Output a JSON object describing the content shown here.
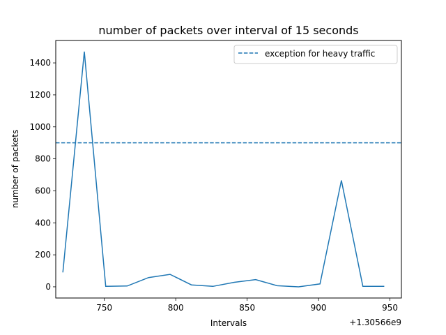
{
  "chart_data": {
    "type": "line",
    "title": "number of packets over interval of 15 seconds",
    "xlabel": "Intervals",
    "ylabel": "number of packets",
    "x_offset_label": "+1.30566e9",
    "xlim": [
      716,
      958
    ],
    "ylim": [
      -70,
      1540
    ],
    "xticks": [
      750,
      800,
      850,
      900,
      950
    ],
    "yticks": [
      0,
      200,
      400,
      600,
      800,
      1000,
      1200,
      1400
    ],
    "grid": false,
    "legend_position": "upper right",
    "series": [
      {
        "color": "#1f77b4",
        "x": [
          721,
          736,
          751,
          766,
          781,
          796,
          811,
          826,
          841,
          856,
          871,
          886,
          901,
          916,
          931,
          946
        ],
        "y": [
          90,
          1470,
          3,
          5,
          58,
          78,
          12,
          3,
          28,
          45,
          7,
          0,
          18,
          665,
          3,
          3
        ]
      }
    ],
    "reference_line": {
      "name": "exception for heavy traffic",
      "y": 900,
      "style": "dashed",
      "color": "#1f77b4"
    }
  }
}
